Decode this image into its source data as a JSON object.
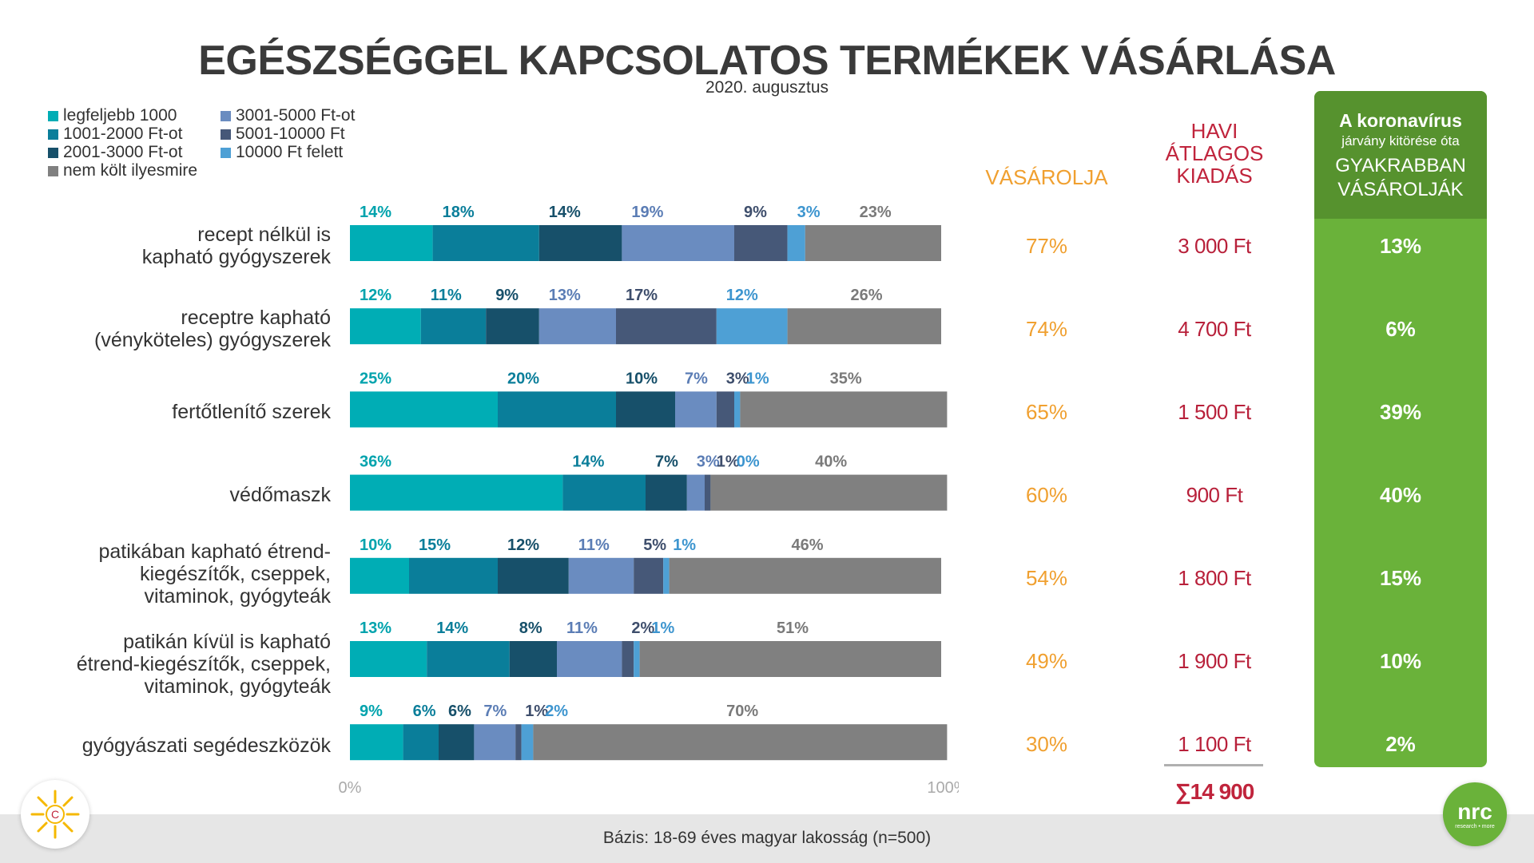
{
  "header": {
    "title": "EGÉSZSÉGGEL KAPCSOLATOS TERMÉKEK VÁSÁRLÁSA",
    "subtitle": "2020. augusztus"
  },
  "legend": [
    {
      "label": "legfeljebb 1000",
      "color": "#00adb5"
    },
    {
      "label": "1001-2000 Ft-ot",
      "color": "#0a7e9a"
    },
    {
      "label": "2001-3000 Ft-ot",
      "color": "#17506a"
    },
    {
      "label": "3001-5000 Ft-ot",
      "color": "#6a8cc0"
    },
    {
      "label": "5001-10000 Ft",
      "color": "#465878"
    },
    {
      "label": "10000 Ft felett",
      "color": "#4ea0d5"
    },
    {
      "label": "nem költ ilyesmire",
      "color": "#808080"
    }
  ],
  "columns": {
    "vasarolja_header": "VÁSÁROLJA",
    "havi_header_lines": [
      "HAVI",
      "ÁTLAGOS",
      "KIADÁS"
    ],
    "green_header_line1": "A koronavírus",
    "green_header_line2": "járvány kitörése óta",
    "green_header_line3a": "GYAKRABBAN",
    "green_header_line3b": "VÁSÁROLJÁK",
    "havi_total": "∑14 900"
  },
  "rows": [
    {
      "label_lines": [
        "recept nélkül is",
        "kapható gyógyszerek"
      ],
      "vasarolja": "77%",
      "havi": "3 000 Ft",
      "gyakrabban": "13%"
    },
    {
      "label_lines": [
        "receptre kapható",
        "(vényköteles) gyógyszerek"
      ],
      "vasarolja": "74%",
      "havi": "4 700 Ft",
      "gyakrabban": "6%"
    },
    {
      "label_lines": [
        "fertőtlenítő szerek"
      ],
      "vasarolja": "65%",
      "havi": "1 500 Ft",
      "gyakrabban": "39%"
    },
    {
      "label_lines": [
        "védőmaszk"
      ],
      "vasarolja": "60%",
      "havi": "900 Ft",
      "gyakrabban": "40%"
    },
    {
      "label_lines": [
        "patikában kapható étrend-",
        "kiegészítők, cseppek,",
        "vitaminok, gyógyteák"
      ],
      "vasarolja": "54%",
      "havi": "1 800 Ft",
      "gyakrabban": "15%"
    },
    {
      "label_lines": [
        "patikán kívül is kapható",
        "étrend-kiegészítők, cseppek,",
        "vitaminok, gyógyteák"
      ],
      "vasarolja": "49%",
      "havi": "1 900 Ft",
      "gyakrabban": "10%"
    },
    {
      "label_lines": [
        "gyógyászati segédeszközök"
      ],
      "vasarolja": "30%",
      "havi": "1 100 Ft",
      "gyakrabban": "2%"
    }
  ],
  "chart_data": {
    "type": "bar",
    "orientation": "horizontal",
    "stacked": true,
    "categories": [
      "recept nélkül is kapható gyógyszerek",
      "receptre kapható (vényköteles) gyógyszerek",
      "fertőtlenítő szerek",
      "védőmaszk",
      "patikában kapható étrend-kiegészítők, cseppek, vitaminok, gyógyteák",
      "patikán kívül is kapható étrend-kiegészítők, cseppek, vitaminok, gyógyteák",
      "gyógyászati segédeszközök"
    ],
    "series": [
      {
        "name": "legfeljebb 1000",
        "color": "#00adb5",
        "label_color": "#00a3ad",
        "values": [
          14,
          12,
          25,
          36,
          10,
          13,
          9
        ]
      },
      {
        "name": "1001-2000 Ft-ot",
        "color": "#0a7e9a",
        "label_color": "#0a7e9a",
        "values": [
          18,
          11,
          20,
          14,
          15,
          14,
          6
        ]
      },
      {
        "name": "2001-3000 Ft-ot",
        "color": "#17506a",
        "label_color": "#17506a",
        "values": [
          14,
          9,
          10,
          7,
          12,
          8,
          6
        ]
      },
      {
        "name": "3001-5000 Ft-ot",
        "color": "#6a8cc0",
        "label_color": "#5b7db5",
        "values": [
          19,
          13,
          7,
          3,
          11,
          11,
          7
        ]
      },
      {
        "name": "5001-10000 Ft",
        "color": "#465878",
        "label_color": "#3e4e6c",
        "values": [
          9,
          17,
          3,
          1,
          5,
          2,
          1
        ]
      },
      {
        "name": "10000 Ft felett",
        "color": "#4ea0d5",
        "label_color": "#3d95cf",
        "values": [
          3,
          12,
          1,
          0,
          1,
          1,
          2
        ]
      },
      {
        "name": "nem költ ilyesmire",
        "color": "#808080",
        "label_color": "#7a7a7a",
        "values": [
          23,
          26,
          35,
          40,
          46,
          51,
          70
        ]
      }
    ],
    "xlim": [
      0,
      100
    ],
    "x_ticks": [
      "0%",
      "100%"
    ]
  },
  "footer": {
    "basis": "Bázis: 18-69 éves magyar lakosság  (n=500)",
    "logo_left_letter": "C",
    "logo_right_text": "nrc",
    "logo_right_sub": "research • more"
  }
}
